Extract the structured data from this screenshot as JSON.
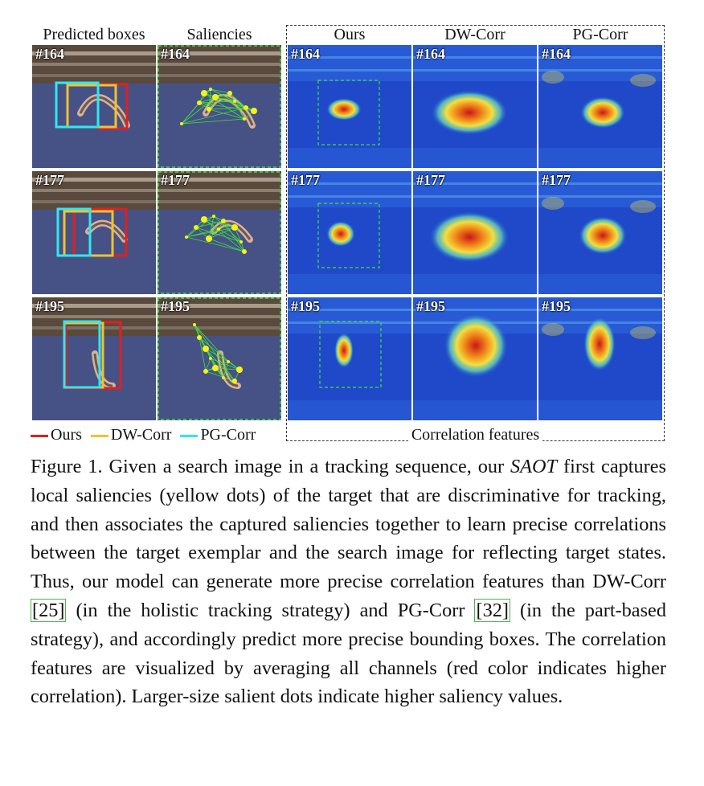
{
  "headers": {
    "predicted_boxes": "Predicted boxes",
    "saliencies": "Saliencies",
    "ours": "Ours",
    "dw_corr": "DW-Corr",
    "pg_corr": "PG-Corr"
  },
  "frames": [
    "#164",
    "#177",
    "#195"
  ],
  "legend": {
    "ours": "Ours",
    "dw": "DW-Corr",
    "pg": "PG-Corr",
    "colors": {
      "ours": "#e0201f",
      "dw": "#f2c12e",
      "pg": "#2fe8f0"
    }
  },
  "correlation_label": "Correlation features",
  "caption": {
    "prefix": "Figure 1. Given a search image in a tracking sequence, our ",
    "method": "SAOT",
    "part1": " first captures local saliencies (yellow dots) of the target that are discriminative for tracking, and then associates the captured saliencies together to learn precise correlations between the target exemplar and the search image for reflecting target states. Thus, our model can generate more precise correlation features than DW-Corr ",
    "ref1": "[25]",
    "part2": " (in the holistic tracking strategy) and PG-Corr ",
    "ref2": "[32]",
    "part3": " (in the part-based strategy), and accordingly predict more precise bounding boxes. The correlation features are visualized by averaging all channels (red color indicates higher correlation). Larger-size salient dots indicate higher saliency values."
  }
}
